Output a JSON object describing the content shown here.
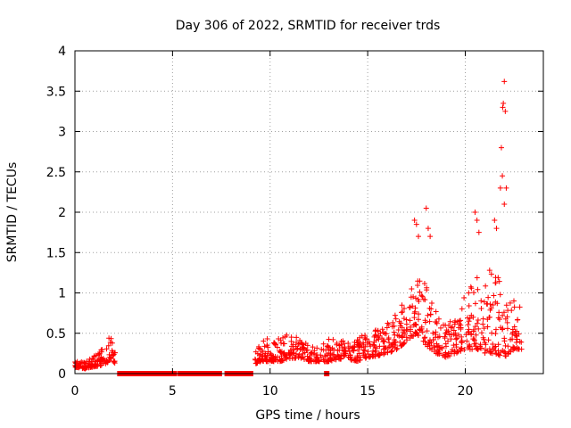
{
  "chart_data": {
    "type": "scatter",
    "title": "Day 306 of 2022, SRMTID for receiver trds",
    "xlabel": "GPS time / hours",
    "ylabel": "SRMTID / TECUs",
    "xlim": [
      0,
      24
    ],
    "ylim": [
      0,
      4
    ],
    "xticks": [
      0,
      5,
      10,
      15,
      20
    ],
    "yticks": [
      0,
      0.5,
      1,
      1.5,
      2,
      2.5,
      3,
      3.5,
      4
    ],
    "xtick_labels": [
      "0",
      "5",
      "10",
      "15",
      "20"
    ],
    "ytick_labels": [
      "0",
      "0.5",
      "1",
      "1.5",
      "2",
      "2.5",
      "3",
      "3.5",
      "4"
    ],
    "grid": true,
    "series": [
      {
        "name": "SRMTID",
        "color": "#ff0000",
        "marker": "plus",
        "envelope": [
          [
            0.0,
            0.08,
            0.16
          ],
          [
            0.5,
            0.06,
            0.14
          ],
          [
            0.9,
            0.08,
            0.2
          ],
          [
            1.3,
            0.1,
            0.3
          ],
          [
            1.6,
            0.12,
            0.4
          ],
          [
            1.9,
            0.2,
            0.5
          ],
          [
            2.1,
            0.08,
            0.25
          ],
          [
            9.2,
            0.12,
            0.3
          ],
          [
            9.6,
            0.15,
            0.4
          ],
          [
            10.0,
            0.15,
            0.45
          ],
          [
            10.5,
            0.15,
            0.45
          ],
          [
            11.0,
            0.18,
            0.5
          ],
          [
            11.5,
            0.2,
            0.45
          ],
          [
            12.0,
            0.15,
            0.35
          ],
          [
            12.5,
            0.15,
            0.35
          ],
          [
            13.0,
            0.15,
            0.45
          ],
          [
            13.5,
            0.18,
            0.45
          ],
          [
            14.0,
            0.18,
            0.4
          ],
          [
            14.5,
            0.15,
            0.45
          ],
          [
            15.0,
            0.2,
            0.5
          ],
          [
            15.5,
            0.22,
            0.55
          ],
          [
            16.0,
            0.25,
            0.65
          ],
          [
            16.5,
            0.3,
            0.75
          ],
          [
            17.0,
            0.4,
            1.0
          ],
          [
            17.5,
            0.5,
            1.2
          ],
          [
            18.0,
            0.35,
            1.1
          ],
          [
            18.5,
            0.25,
            0.8
          ],
          [
            19.0,
            0.2,
            0.6
          ],
          [
            19.5,
            0.25,
            0.7
          ],
          [
            20.0,
            0.3,
            1.0
          ],
          [
            20.5,
            0.3,
            1.2
          ],
          [
            21.0,
            0.25,
            1.2
          ],
          [
            21.5,
            0.25,
            1.4
          ],
          [
            22.0,
            0.2,
            1.0
          ],
          [
            22.5,
            0.3,
            0.9
          ],
          [
            22.9,
            0.3,
            0.8
          ]
        ],
        "spikes": [
          [
            17.4,
            1.9
          ],
          [
            17.5,
            1.85
          ],
          [
            17.6,
            1.7
          ],
          [
            18.0,
            2.05
          ],
          [
            18.1,
            1.8
          ],
          [
            18.2,
            1.7
          ],
          [
            20.5,
            2.0
          ],
          [
            20.6,
            1.9
          ],
          [
            20.7,
            1.75
          ],
          [
            21.5,
            1.9
          ],
          [
            21.6,
            1.8
          ],
          [
            21.8,
            2.3
          ],
          [
            21.9,
            2.45
          ],
          [
            21.85,
            2.8
          ],
          [
            21.95,
            3.35
          ],
          [
            21.92,
            3.3
          ],
          [
            22.0,
            3.62
          ],
          [
            22.05,
            3.25
          ],
          [
            22.1,
            2.3
          ],
          [
            22.0,
            2.1
          ]
        ],
        "zeros_marker": "square",
        "zeros": [
          2.3,
          2.5,
          2.7,
          2.9,
          3.1,
          3.3,
          3.5,
          3.7,
          3.9,
          4.1,
          4.3,
          4.5,
          4.7,
          4.9,
          5.1,
          5.4,
          5.6,
          5.8,
          6.0,
          6.2,
          6.4,
          6.6,
          6.8,
          7.0,
          7.2,
          7.4,
          7.8,
          8.0,
          8.2,
          8.4,
          8.6,
          8.8,
          9.0,
          12.9
        ]
      }
    ]
  }
}
